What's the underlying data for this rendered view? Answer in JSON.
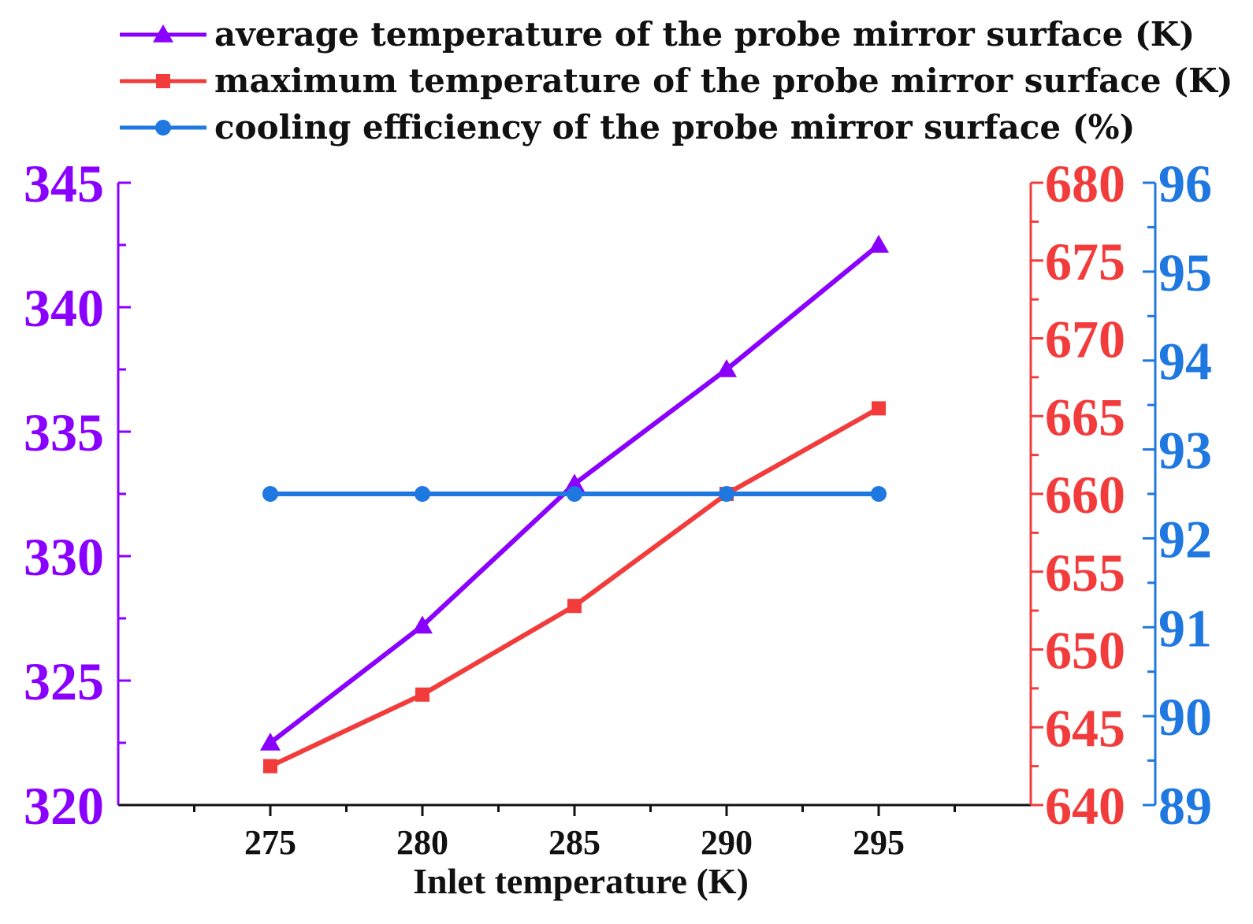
{
  "colors": {
    "purple": "#8a00ff",
    "red": "#f23c3c",
    "blue": "#1f78e0",
    "axis": "#111111"
  },
  "chart_data": {
    "type": "line",
    "x": [
      275,
      280,
      285,
      290,
      295
    ],
    "xlabel": "Inlet temperature (K)",
    "xlim": [
      270,
      300
    ],
    "x_ticks": [
      "275",
      "280",
      "285",
      "290",
      "295"
    ],
    "series": [
      {
        "name": "average temperature of the probe mirror surface (K)",
        "marker": "triangle",
        "axis": "left",
        "color": "#8a00ff",
        "values": [
          322.5,
          327.2,
          332.9,
          337.5,
          342.5
        ]
      },
      {
        "name": "maximum temperature of the probe mirror surface (K)",
        "marker": "square",
        "axis": "right-inner",
        "color": "#f23c3c",
        "values": [
          642.5,
          647.1,
          652.8,
          660.0,
          665.5
        ]
      },
      {
        "name": "cooling efficiency of the probe mirror surface (%)",
        "marker": "circle",
        "axis": "right-outer",
        "color": "#1f78e0",
        "values": [
          92.5,
          92.5,
          92.5,
          92.5,
          92.5
        ]
      }
    ],
    "y_axes": {
      "left": {
        "range": [
          320,
          345
        ],
        "ticks": [
          "320",
          "325",
          "330",
          "335",
          "340",
          "345"
        ],
        "color": "#8a00ff"
      },
      "right-inner": {
        "range": [
          640,
          680
        ],
        "ticks": [
          "640",
          "645",
          "650",
          "655",
          "660",
          "665",
          "670",
          "675",
          "680"
        ],
        "color": "#f23c3c"
      },
      "right-outer": {
        "range": [
          89,
          96
        ],
        "ticks": [
          "89",
          "90",
          "91",
          "92",
          "93",
          "94",
          "95",
          "96"
        ],
        "color": "#1f78e0"
      }
    }
  }
}
